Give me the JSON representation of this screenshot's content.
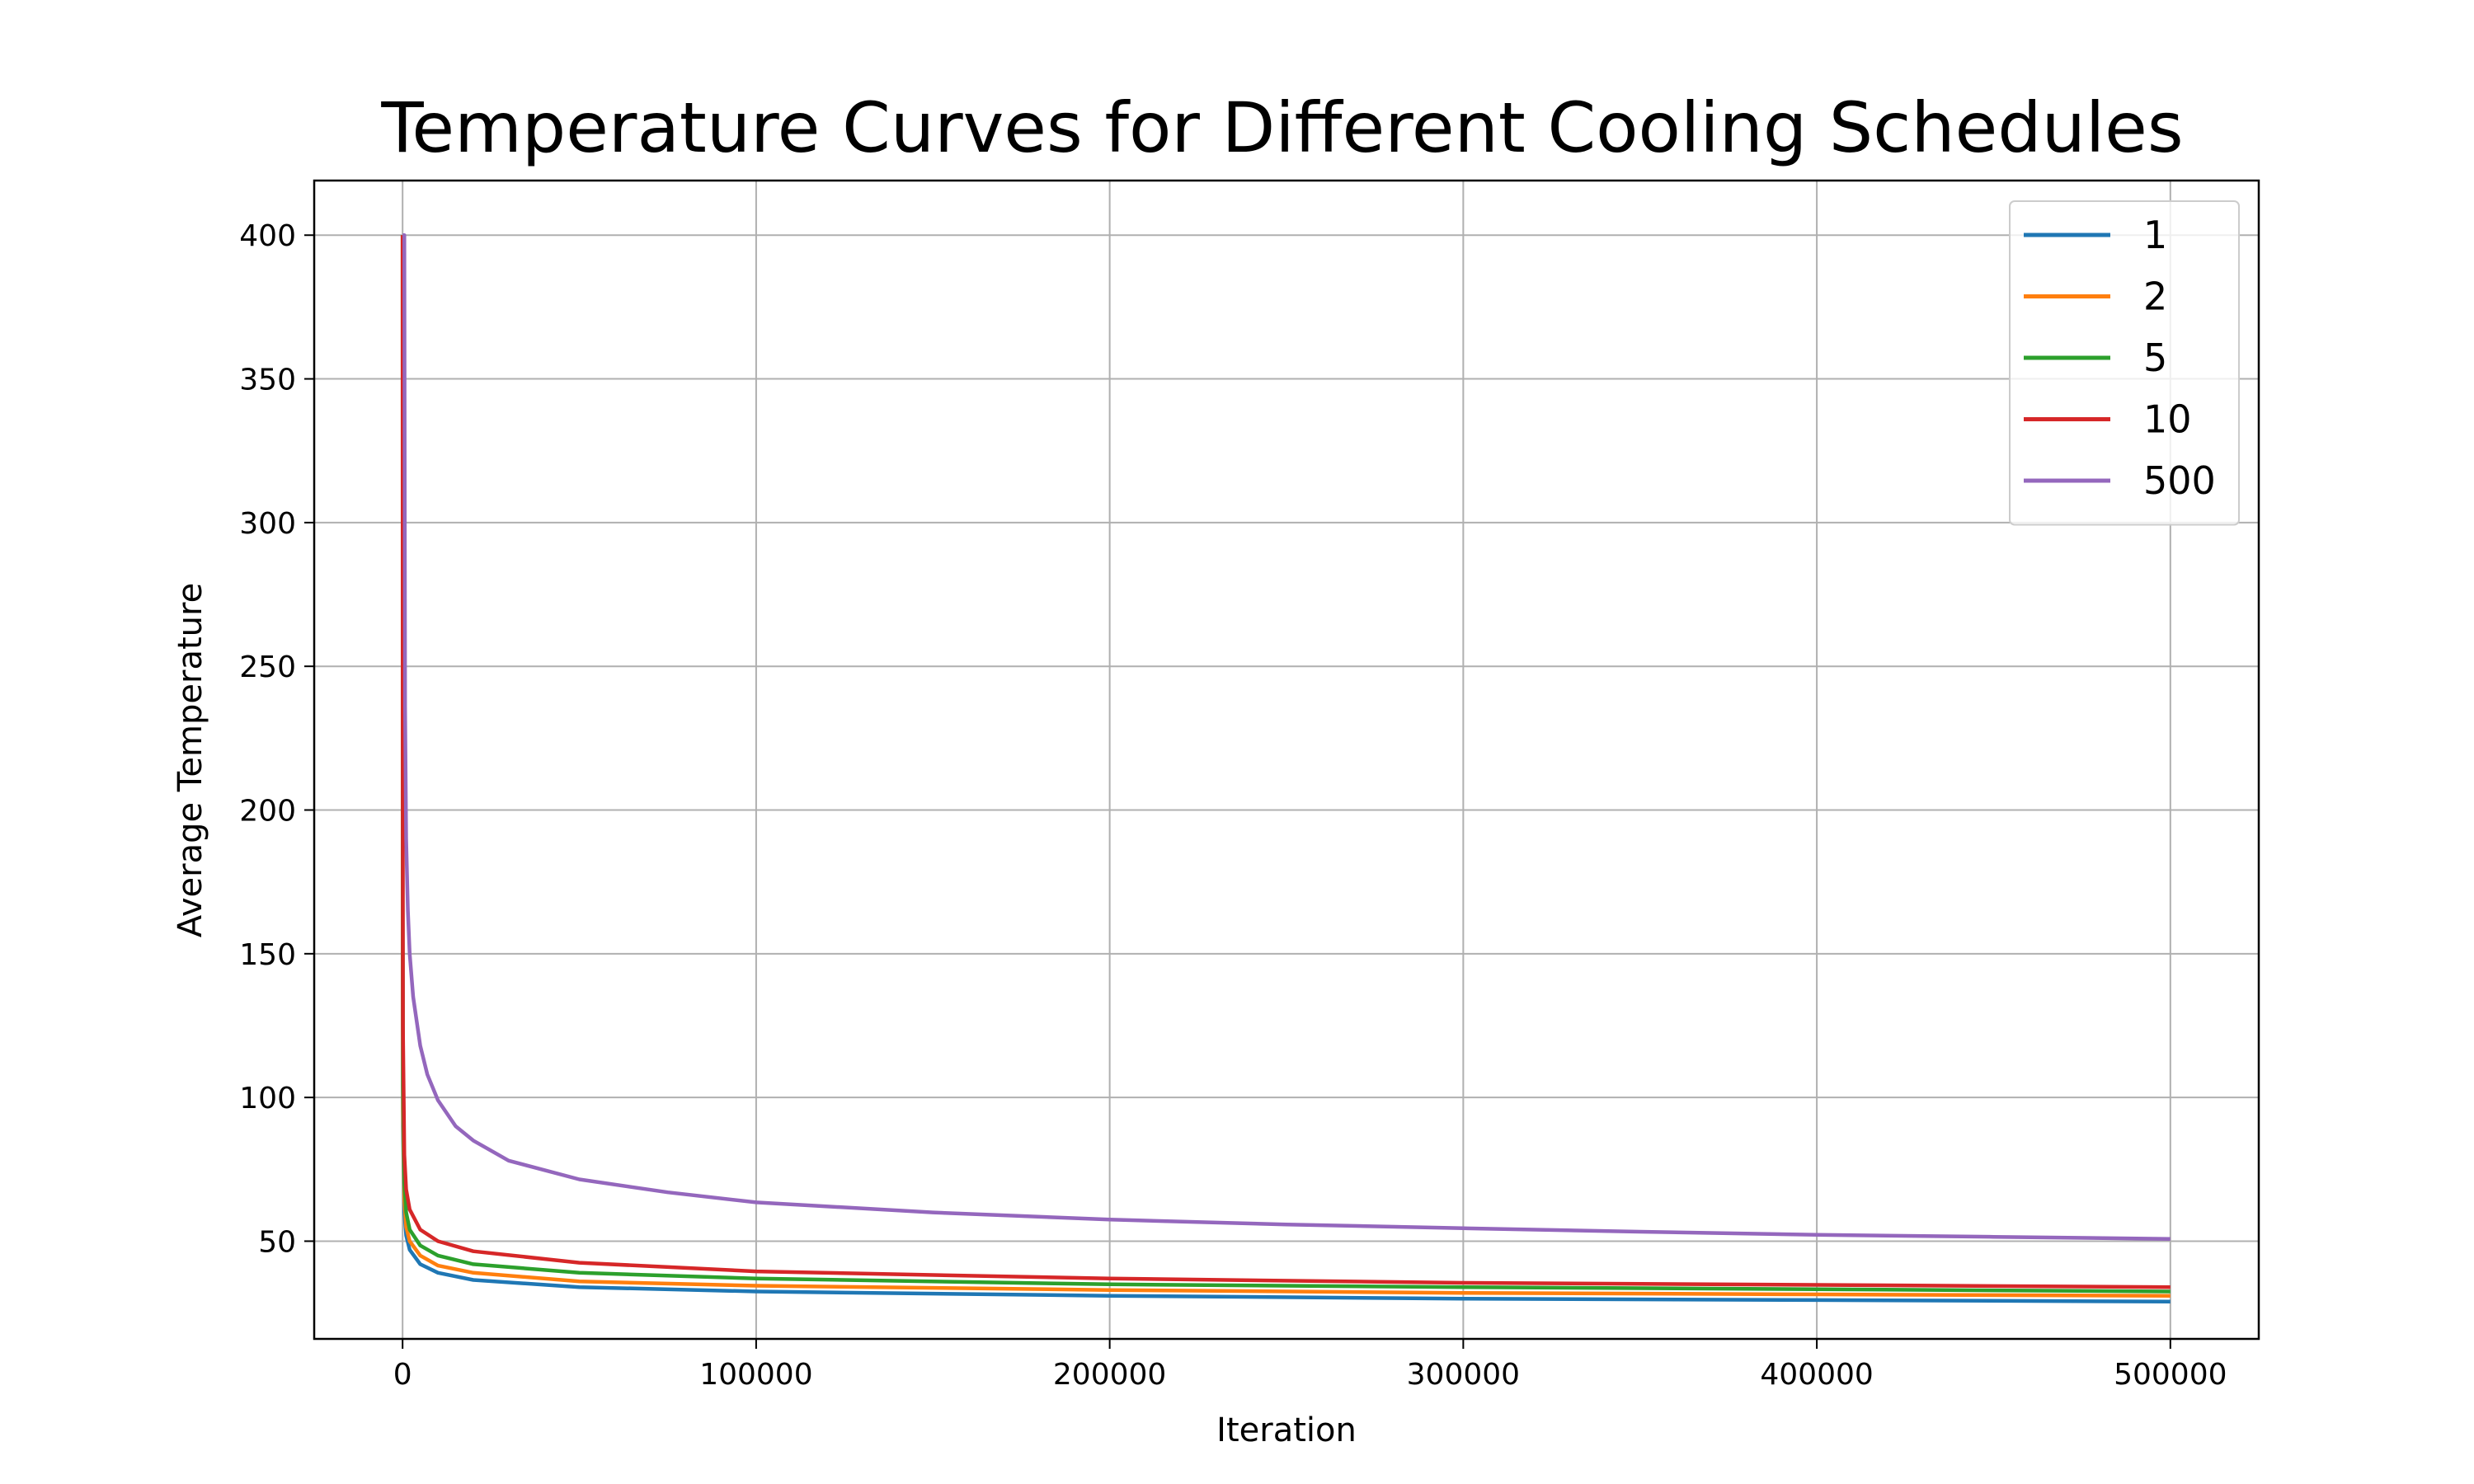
{
  "chart_data": {
    "type": "line",
    "title": "Temperature Curves for Different Cooling Schedules",
    "xlabel": "Iteration",
    "ylabel": "Average Temperature",
    "xlim": [
      -25000,
      525000
    ],
    "ylim": [
      16,
      419
    ],
    "xticks": [
      0,
      100000,
      200000,
      300000,
      400000,
      500000
    ],
    "yticks": [
      50,
      100,
      150,
      200,
      250,
      300,
      350,
      400
    ],
    "grid": true,
    "legend_position": "top-right",
    "series": [
      {
        "name": "1",
        "color": "#1f77b4",
        "x": [
          0,
          20,
          100,
          500,
          1000,
          2000,
          5000,
          10000,
          20000,
          50000,
          100000,
          200000,
          300000,
          400000,
          500000
        ],
        "y": [
          400,
          160,
          90,
          60,
          52,
          47,
          42,
          39,
          36.5,
          34,
          32.5,
          31,
          30,
          29.5,
          29
        ]
      },
      {
        "name": "2",
        "color": "#ff7f0e",
        "x": [
          0,
          20,
          100,
          500,
          1000,
          2000,
          5000,
          10000,
          20000,
          50000,
          100000,
          200000,
          300000,
          400000,
          500000
        ],
        "y": [
          400,
          170,
          96,
          64,
          55,
          50,
          45,
          41.5,
          39,
          36,
          34.5,
          33,
          32,
          31.5,
          31
        ]
      },
      {
        "name": "5",
        "color": "#2ca02c",
        "x": [
          0,
          20,
          100,
          500,
          1000,
          2000,
          5000,
          10000,
          20000,
          50000,
          100000,
          200000,
          300000,
          400000,
          500000
        ],
        "y": [
          400,
          180,
          104,
          70,
          60,
          54,
          48.5,
          45,
          42,
          39,
          37,
          35,
          34,
          33.3,
          32.5
        ]
      },
      {
        "name": "10",
        "color": "#d62728",
        "x": [
          0,
          20,
          100,
          500,
          1000,
          2000,
          5000,
          10000,
          20000,
          50000,
          100000,
          200000,
          300000,
          400000,
          500000
        ],
        "y": [
          400,
          235,
          125,
          80,
          68,
          61,
          54,
          50,
          46.5,
          42.5,
          39.5,
          37,
          35.5,
          34.8,
          34
        ]
      },
      {
        "name": "500",
        "color": "#9467bd",
        "x": [
          0,
          500,
          700,
          1000,
          1500,
          2000,
          3000,
          5000,
          7000,
          10000,
          15000,
          20000,
          30000,
          50000,
          75000,
          100000,
          150000,
          200000,
          250000,
          300000,
          350000,
          400000,
          450000,
          500000
        ],
        "y": [
          400,
          400,
          236,
          190,
          165,
          150,
          135,
          118,
          108,
          99,
          90,
          85,
          78,
          71.5,
          67,
          63.5,
          60,
          57.5,
          55.8,
          54.5,
          53.3,
          52.2,
          51.5,
          50.8
        ]
      }
    ]
  }
}
